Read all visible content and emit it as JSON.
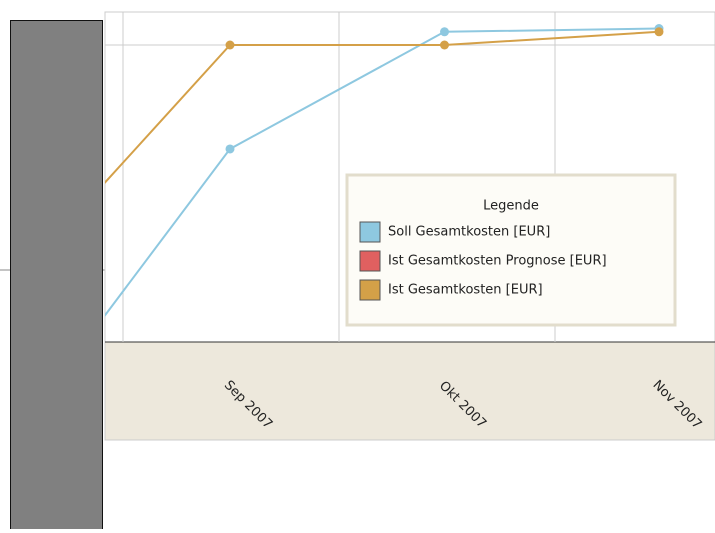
{
  "chart_data": {
    "type": "line",
    "categories": [
      null,
      "Sep 2007",
      "Okt 2007",
      "Nov 2007"
    ],
    "series": [
      {
        "name": "Soll Gesamtkosten [EUR]",
        "color": "#8ec8e0",
        "values": [
          -28,
          58.5,
          94,
          95
        ]
      },
      {
        "name": "Ist Gesamtkosten Prognose [EUR]",
        "color": "#e06060",
        "values": [
          null,
          null,
          null,
          null
        ]
      },
      {
        "name": "Ist Gesamtkosten [EUR]",
        "color": "#d4a048",
        "values": [
          18.5,
          90,
          90,
          94
        ]
      }
    ],
    "ylim": [
      0,
      100
    ],
    "ygrid": [
      90
    ],
    "legend_title": "Legende",
    "legend": "right"
  }
}
